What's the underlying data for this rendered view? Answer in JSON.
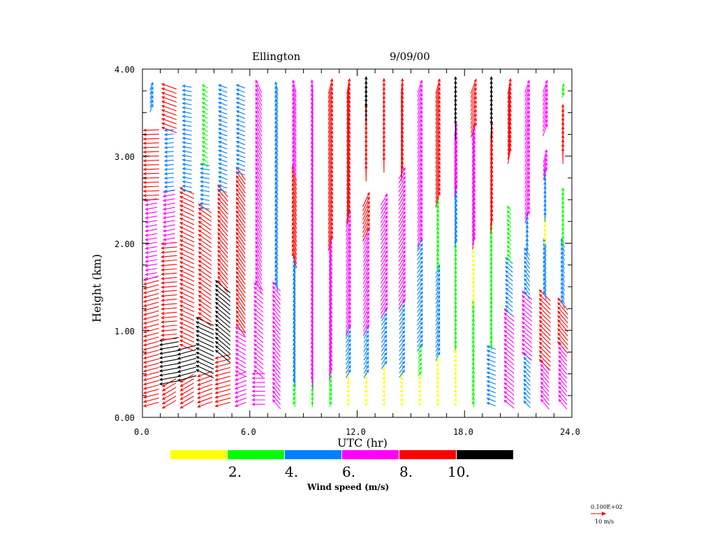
{
  "chart_data": {
    "type": "wind-barb-profile",
    "title_left": "Ellington",
    "title_right": "9/09/00",
    "xlabel": "UTC (hr)",
    "ylabel": "Height (km)",
    "xlim": [
      0,
      24
    ],
    "ylim": [
      0,
      4
    ],
    "x_ticks": [
      "0.0",
      "6.0",
      "12.0",
      "18.0",
      "24.0"
    ],
    "x_tick_values": [
      0,
      6,
      12,
      18,
      24
    ],
    "y_ticks": [
      "0.00",
      "1.00",
      "2.00",
      "3.00",
      "4.00"
    ],
    "y_tick_values": [
      0,
      1,
      2,
      3,
      4
    ],
    "colorbar": {
      "label": "Wind speed (m/s)",
      "colors": [
        "#ffff00",
        "#00ff00",
        "#0080ff",
        "#ff00ff",
        "#ff0000",
        "#000000"
      ],
      "tick_labels": [
        "2.",
        "4.",
        "6.",
        "8.",
        "10."
      ],
      "bounds": [
        0,
        2,
        4,
        6,
        8,
        10,
        12
      ]
    },
    "reference_vector": {
      "value_label": "0.100E+02",
      "unit_label": "10 m/s",
      "speed": 10,
      "color": "#ff0000"
    },
    "profiles": [
      {
        "time": 0.5,
        "segments": [
          {
            "z0": 0.15,
            "z1": 1.6,
            "dir": 75,
            "speed": 8.5
          },
          {
            "z0": 1.6,
            "z1": 2.5,
            "dir": 80,
            "speed": 6.5
          },
          {
            "z0": 2.5,
            "z1": 3.3,
            "dir": 88,
            "speed": 8.5
          },
          {
            "z0": 3.55,
            "z1": 3.8,
            "dir": 200,
            "speed": 4.5
          }
        ]
      },
      {
        "time": 1.5,
        "segments": [
          {
            "z0": 0.15,
            "z1": 0.4,
            "dir": 60,
            "speed": 8.5
          },
          {
            "z0": 0.4,
            "z1": 0.9,
            "dir": 80,
            "speed": 10.5
          },
          {
            "z0": 0.9,
            "z1": 2.0,
            "dir": 85,
            "speed": 8.5
          },
          {
            "z0": 2.0,
            "z1": 2.6,
            "dir": 80,
            "speed": 6.5
          },
          {
            "z0": 2.6,
            "z1": 3.3,
            "dir": 85,
            "speed": 5.0
          },
          {
            "z0": 3.3,
            "z1": 3.8,
            "dir": 110,
            "speed": 8.5
          }
        ]
      },
      {
        "time": 2.5,
        "segments": [
          {
            "z0": 0.15,
            "z1": 0.45,
            "dir": 60,
            "speed": 8.5
          },
          {
            "z0": 0.45,
            "z1": 0.8,
            "dir": 75,
            "speed": 10.5
          },
          {
            "z0": 0.8,
            "z1": 2.6,
            "dir": 115,
            "speed": 8.5
          },
          {
            "z0": 2.6,
            "z1": 3.8,
            "dir": 100,
            "speed": 5.0
          }
        ]
      },
      {
        "time": 3.5,
        "segments": [
          {
            "z0": 0.15,
            "z1": 0.5,
            "dir": 70,
            "speed": 8.5
          },
          {
            "z0": 0.5,
            "z1": 1.1,
            "dir": 115,
            "speed": 10.5
          },
          {
            "z0": 1.1,
            "z1": 2.4,
            "dir": 125,
            "speed": 8.5
          },
          {
            "z0": 2.4,
            "z1": 2.9,
            "dir": 100,
            "speed": 5.0
          },
          {
            "z0": 2.9,
            "z1": 3.8,
            "dir": 120,
            "speed": 3.5
          }
        ]
      },
      {
        "time": 4.5,
        "segments": [
          {
            "z0": 0.15,
            "z1": 0.7,
            "dir": 75,
            "speed": 8.5
          },
          {
            "z0": 0.7,
            "z1": 1.5,
            "dir": 130,
            "speed": 10.5
          },
          {
            "z0": 1.5,
            "z1": 2.6,
            "dir": 140,
            "speed": 8.5
          },
          {
            "z0": 2.6,
            "z1": 3.8,
            "dir": 110,
            "speed": 5.0
          }
        ]
      },
      {
        "time": 5.5,
        "segments": [
          {
            "z0": 0.15,
            "z1": 0.5,
            "dir": 70,
            "speed": 6.5
          },
          {
            "z0": 0.5,
            "z1": 1.0,
            "dir": 120,
            "speed": 6.5
          },
          {
            "z0": 1.0,
            "z1": 2.8,
            "dir": 145,
            "speed": 8.5
          },
          {
            "z0": 2.8,
            "z1": 3.8,
            "dir": 110,
            "speed": 5.0
          }
        ]
      },
      {
        "time": 6.5,
        "segments": [
          {
            "z0": 0.15,
            "z1": 0.5,
            "dir": 90,
            "speed": 7.0
          },
          {
            "z0": 0.5,
            "z1": 1.5,
            "dir": 130,
            "speed": 6.5
          },
          {
            "z0": 1.5,
            "z1": 3.8,
            "dir": 155,
            "speed": 7.5
          }
        ]
      },
      {
        "time": 7.5,
        "segments": [
          {
            "z0": 0.15,
            "z1": 1.5,
            "dir": 140,
            "speed": 6.5
          },
          {
            "z0": 1.5,
            "z1": 3.8,
            "dir": 165,
            "speed": 5.0
          }
        ]
      },
      {
        "time": 8.5,
        "segments": [
          {
            "z0": 0.15,
            "z1": 0.4,
            "dir": 160,
            "speed": 3.0
          },
          {
            "z0": 0.4,
            "z1": 1.8,
            "dir": 170,
            "speed": 5.0
          },
          {
            "z0": 1.8,
            "z1": 2.8,
            "dir": 165,
            "speed": 8.5
          },
          {
            "z0": 2.8,
            "z1": 3.8,
            "dir": 165,
            "speed": 7.0
          }
        ]
      },
      {
        "time": 9.5,
        "segments": [
          {
            "z0": 0.15,
            "z1": 0.4,
            "dir": 180,
            "speed": 3.0
          },
          {
            "z0": 0.4,
            "z1": 3.8,
            "dir": 175,
            "speed": 7.0
          }
        ]
      },
      {
        "time": 10.5,
        "segments": [
          {
            "z0": 0.15,
            "z1": 0.5,
            "dir": 200,
            "speed": 3.0
          },
          {
            "z0": 0.5,
            "z1": 2.0,
            "dir": 190,
            "speed": 7.0
          },
          {
            "z0": 2.0,
            "z1": 3.8,
            "dir": 195,
            "speed": 8.5
          }
        ]
      },
      {
        "time": 11.5,
        "segments": [
          {
            "z0": 0.15,
            "z1": 0.5,
            "dir": 210,
            "speed": 1.5
          },
          {
            "z0": 0.5,
            "z1": 1.0,
            "dir": 210,
            "speed": 5.0
          },
          {
            "z0": 1.0,
            "z1": 2.3,
            "dir": 200,
            "speed": 7.0
          },
          {
            "z0": 2.3,
            "z1": 3.8,
            "dir": 190,
            "speed": 8.5
          }
        ]
      },
      {
        "time": 12.5,
        "segments": [
          {
            "z0": 0.15,
            "z1": 0.5,
            "dir": 210,
            "speed": 1.5
          },
          {
            "z0": 0.5,
            "z1": 1.0,
            "dir": 210,
            "speed": 5.0
          },
          {
            "z0": 1.0,
            "z1": 2.1,
            "dir": 205,
            "speed": 7.0
          },
          {
            "z0": 2.1,
            "z1": 2.5,
            "dir": 205,
            "speed": 8.5
          },
          {
            "z0": 2.8,
            "z1": 3.5,
            "dir": 180,
            "speed": 8.5
          },
          {
            "z0": 3.5,
            "z1": 3.8,
            "dir": 180,
            "speed": 10.5
          }
        ]
      },
      {
        "time": 13.5,
        "segments": [
          {
            "z0": 0.15,
            "z1": 0.6,
            "dir": 215,
            "speed": 1.5
          },
          {
            "z0": 0.6,
            "z1": 1.2,
            "dir": 215,
            "speed": 5.0
          },
          {
            "z0": 1.2,
            "z1": 2.5,
            "dir": 210,
            "speed": 7.0
          },
          {
            "z0": 2.9,
            "z1": 3.8,
            "dir": 180,
            "speed": 8.5
          }
        ]
      },
      {
        "time": 14.5,
        "segments": [
          {
            "z0": 0.15,
            "z1": 0.5,
            "dir": 215,
            "speed": 1.5
          },
          {
            "z0": 0.5,
            "z1": 1.3,
            "dir": 215,
            "speed": 5.0
          },
          {
            "z0": 1.3,
            "z1": 2.8,
            "dir": 210,
            "speed": 7.0
          },
          {
            "z0": 2.8,
            "z1": 3.8,
            "dir": 185,
            "speed": 8.5
          }
        ]
      },
      {
        "time": 15.5,
        "segments": [
          {
            "z0": 0.15,
            "z1": 0.5,
            "dir": 215,
            "speed": 1.5
          },
          {
            "z0": 0.5,
            "z1": 0.8,
            "dir": 215,
            "speed": 3.0
          },
          {
            "z0": 0.8,
            "z1": 2.0,
            "dir": 215,
            "speed": 5.0
          },
          {
            "z0": 2.0,
            "z1": 3.8,
            "dir": 200,
            "speed": 7.0
          }
        ]
      },
      {
        "time": 16.5,
        "segments": [
          {
            "z0": 0.15,
            "z1": 0.7,
            "dir": 190,
            "speed": 1.5
          },
          {
            "z0": 0.7,
            "z1": 1.7,
            "dir": 205,
            "speed": 5.0
          },
          {
            "z0": 1.7,
            "z1": 2.5,
            "dir": 195,
            "speed": 3.0
          },
          {
            "z0": 2.5,
            "z1": 3.8,
            "dir": 195,
            "speed": 8.5
          }
        ]
      },
      {
        "time": 17.5,
        "segments": [
          {
            "z0": 0.15,
            "z1": 0.8,
            "dir": 190,
            "speed": 1.5
          },
          {
            "z0": 0.8,
            "z1": 2.0,
            "dir": 185,
            "speed": 3.0
          },
          {
            "z0": 2.0,
            "z1": 2.6,
            "dir": 190,
            "speed": 5.0
          },
          {
            "z0": 2.6,
            "z1": 3.3,
            "dir": 190,
            "speed": 7.0
          },
          {
            "z0": 3.3,
            "z1": 3.8,
            "dir": 180,
            "speed": 10.5
          }
        ]
      },
      {
        "time": 18.5,
        "segments": [
          {
            "z0": 0.15,
            "z1": 1.3,
            "dir": 170,
            "speed": 3.0
          },
          {
            "z0": 1.3,
            "z1": 2.0,
            "dir": 190,
            "speed": 1.5
          },
          {
            "z0": 2.0,
            "z1": 3.3,
            "dir": 190,
            "speed": 7.0
          },
          {
            "z0": 3.3,
            "z1": 3.8,
            "dir": 200,
            "speed": 8.5
          }
        ]
      },
      {
        "time": 19.5,
        "segments": [
          {
            "z0": 0.15,
            "z1": 0.8,
            "dir": 110,
            "speed": 5.0
          },
          {
            "z0": 0.8,
            "z1": 2.2,
            "dir": 170,
            "speed": 3.0
          },
          {
            "z0": 2.2,
            "z1": 3.3,
            "dir": 185,
            "speed": 8.5
          },
          {
            "z0": 3.3,
            "z1": 3.8,
            "dir": 180,
            "speed": 10.5
          }
        ]
      },
      {
        "time": 20.5,
        "segments": [
          {
            "z0": 0.15,
            "z1": 1.2,
            "dir": 130,
            "speed": 7.0
          },
          {
            "z0": 1.2,
            "z1": 1.8,
            "dir": 130,
            "speed": 5.0
          },
          {
            "z0": 1.8,
            "z1": 2.4,
            "dir": 135,
            "speed": 3.0
          },
          {
            "z0": 3.0,
            "z1": 3.8,
            "dir": 190,
            "speed": 8.5
          }
        ]
      },
      {
        "time": 21.5,
        "segments": [
          {
            "z0": 0.15,
            "z1": 0.7,
            "dir": 135,
            "speed": 5.0
          },
          {
            "z0": 0.7,
            "z1": 1.4,
            "dir": 130,
            "speed": 7.0
          },
          {
            "z0": 1.4,
            "z1": 1.9,
            "dir": 145,
            "speed": 5.0
          },
          {
            "z0": 1.9,
            "z1": 2.3,
            "dir": 180,
            "speed": 5.0
          },
          {
            "z0": 2.3,
            "z1": 3.3,
            "dir": 200,
            "speed": 7.0
          },
          {
            "z0": 3.3,
            "z1": 3.8,
            "dir": 200,
            "speed": 7.0
          }
        ]
      },
      {
        "time": 22.5,
        "segments": [
          {
            "z0": 0.15,
            "z1": 0.6,
            "dir": 140,
            "speed": 7.0
          },
          {
            "z0": 0.6,
            "z1": 1.4,
            "dir": 135,
            "speed": 8.5
          },
          {
            "z0": 1.4,
            "z1": 2.0,
            "dir": 165,
            "speed": 5.0
          },
          {
            "z0": 2.0,
            "z1": 2.3,
            "dir": 175,
            "speed": 1.5
          },
          {
            "z0": 2.3,
            "z1": 2.8,
            "dir": 180,
            "speed": 5.0
          },
          {
            "z0": 2.8,
            "z1": 3.0,
            "dir": 195,
            "speed": 7.0
          },
          {
            "z0": 3.3,
            "z1": 3.8,
            "dir": 200,
            "speed": 7.0
          }
        ]
      },
      {
        "time": 23.5,
        "segments": [
          {
            "z0": 0.15,
            "z1": 0.8,
            "dir": 140,
            "speed": 7.0
          },
          {
            "z0": 0.8,
            "z1": 1.3,
            "dir": 140,
            "speed": 8.5
          },
          {
            "z0": 1.3,
            "z1": 2.0,
            "dir": 160,
            "speed": 5.0
          },
          {
            "z0": 2.0,
            "z1": 2.6,
            "dir": 180,
            "speed": 3.0
          },
          {
            "z0": 3.0,
            "z1": 3.5,
            "dir": 180,
            "speed": 8.5
          },
          {
            "z0": 3.7,
            "z1": 3.8,
            "dir": 200,
            "speed": 3.0
          }
        ]
      }
    ]
  }
}
